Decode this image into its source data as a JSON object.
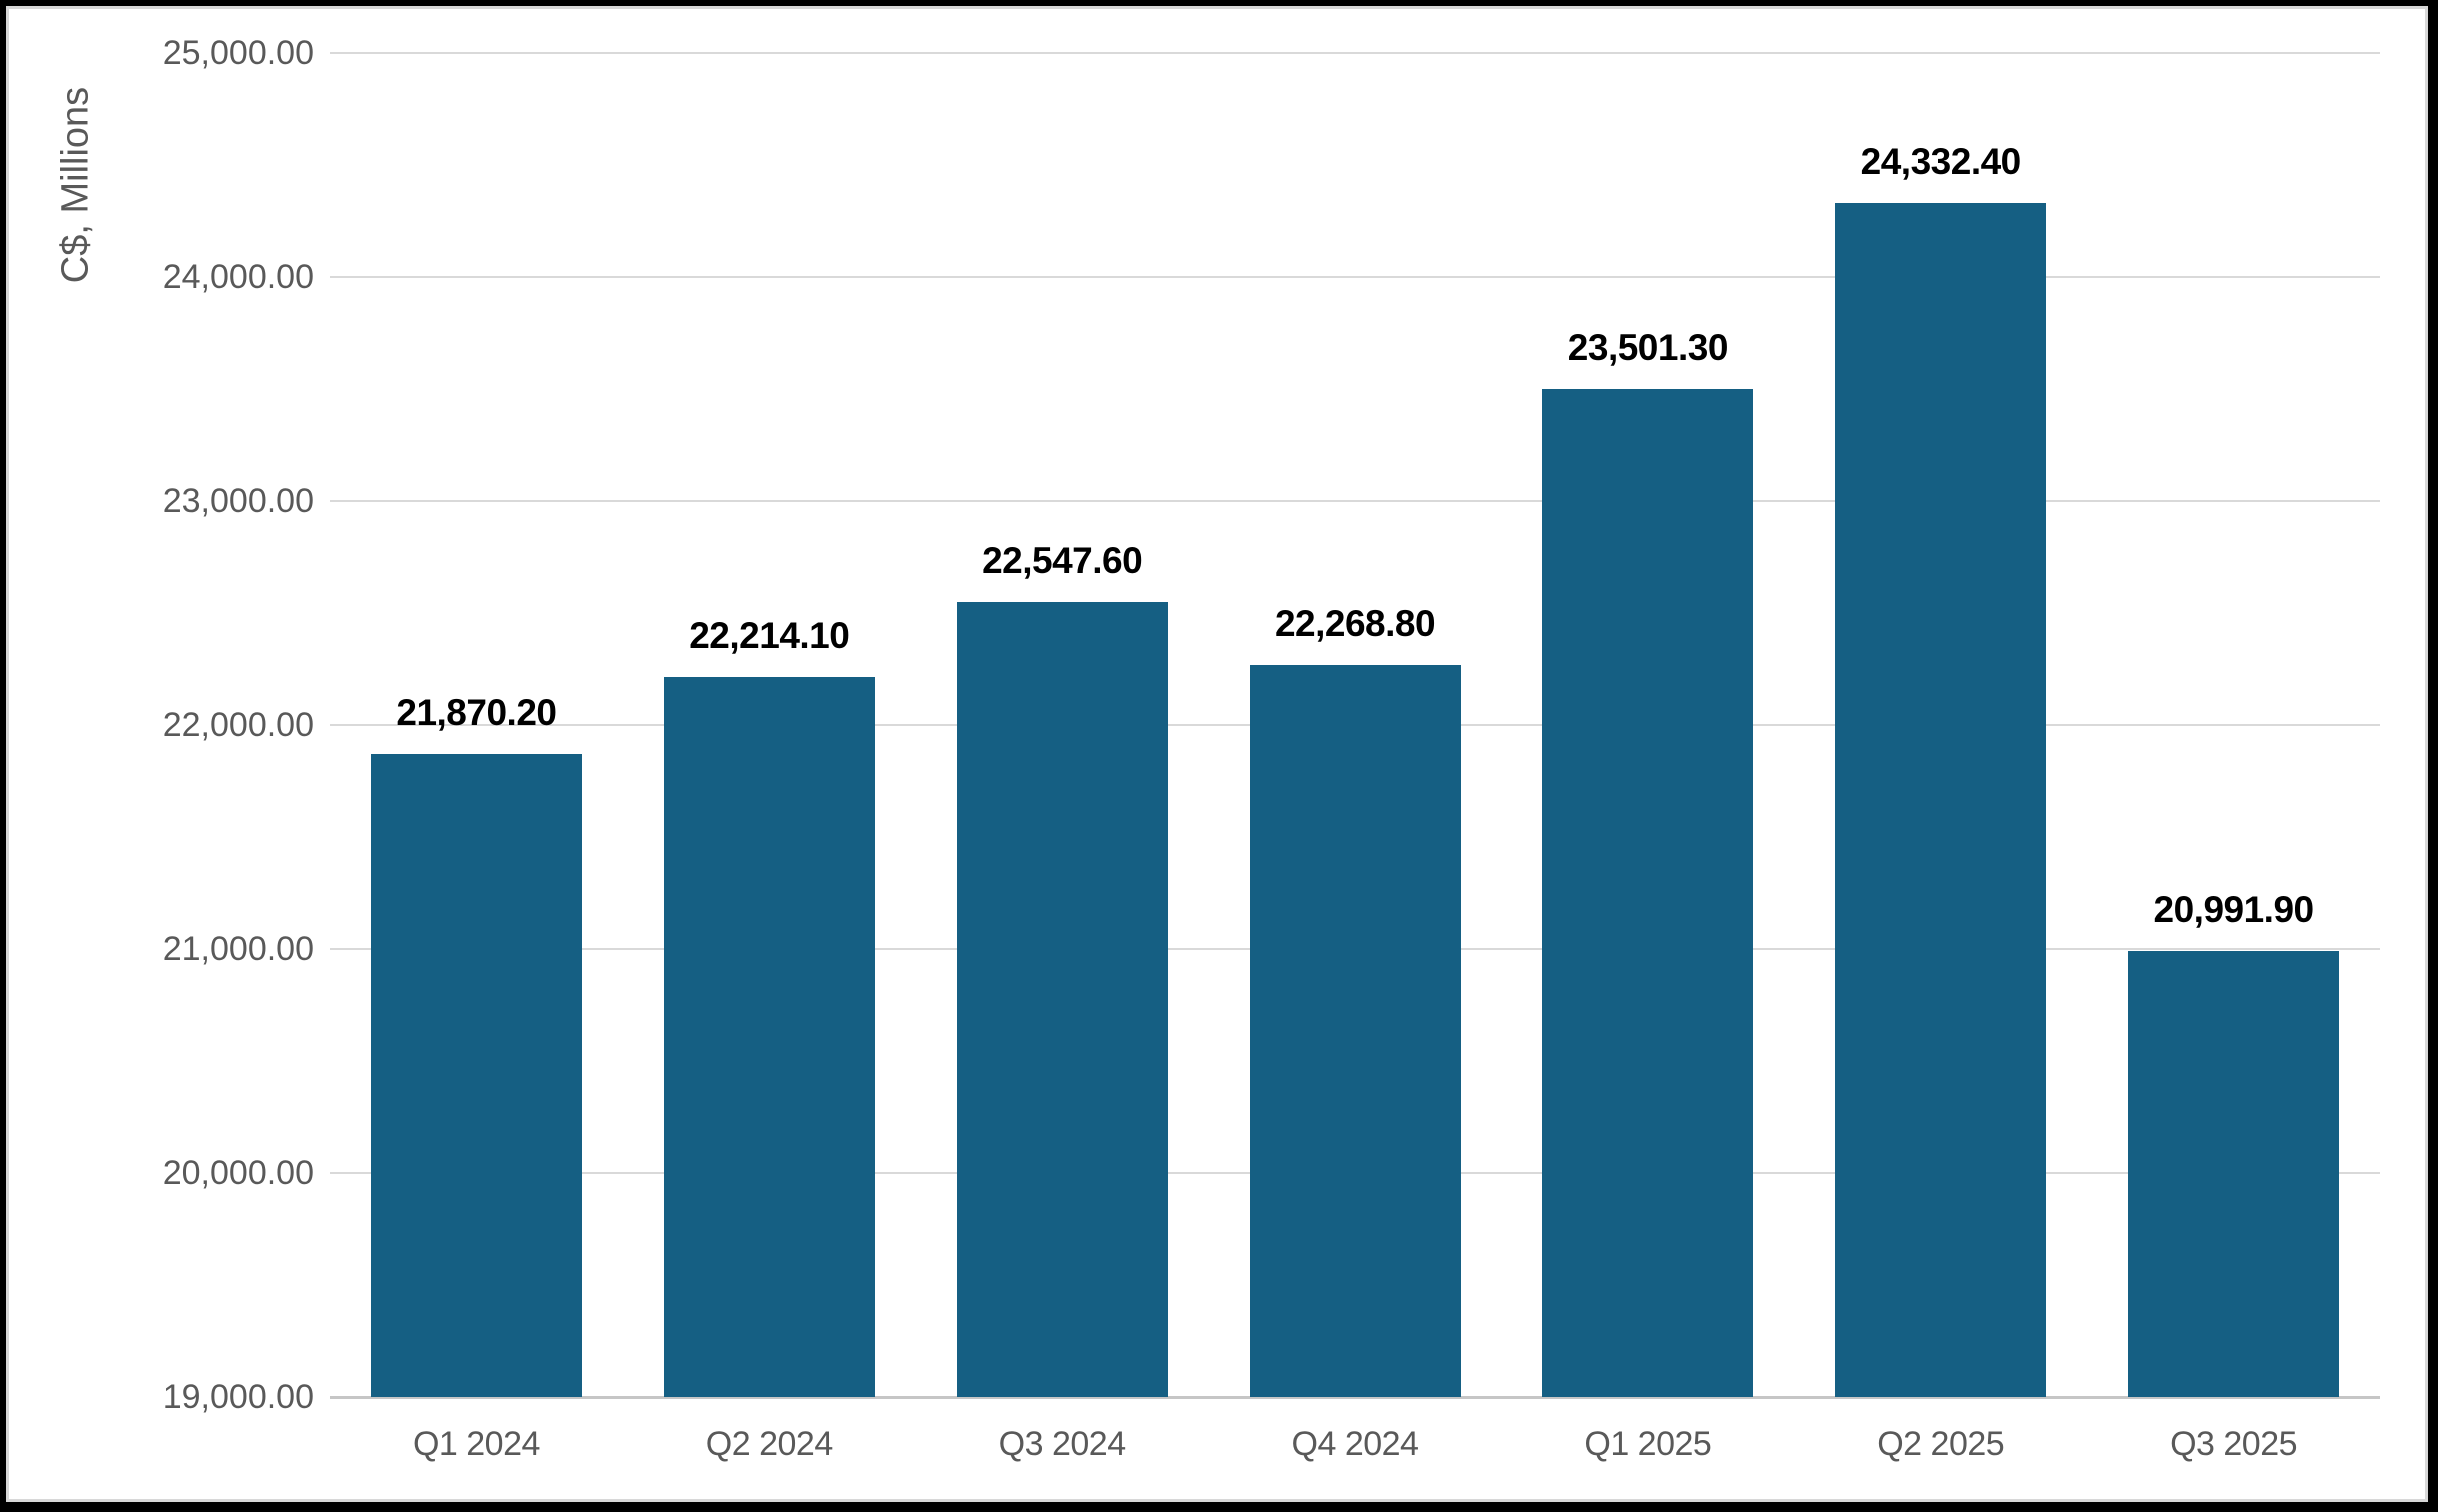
{
  "chart_data": {
    "type": "bar",
    "title": "",
    "xlabel": "",
    "ylabel": "C$, Millions",
    "categories": [
      "Q1 2024",
      "Q2 2024",
      "Q3 2024",
      "Q4 2024",
      "Q1 2025",
      "Q2 2025",
      "Q3 2025"
    ],
    "values": [
      21870.2,
      22214.1,
      22547.6,
      22268.8,
      23501.3,
      24332.4,
      20991.9
    ],
    "value_labels": [
      "21,870.20",
      "22,214.10",
      "22,547.60",
      "22,268.80",
      "23,501.30",
      "24,332.40",
      "20,991.90"
    ],
    "ylim": [
      19000,
      25000
    ],
    "ytick_step": 1000,
    "ytick_labels": [
      "25,000.00",
      "24,000.00",
      "23,000.00",
      "22,000.00",
      "21,000.00",
      "20,000.00",
      "19,000.00"
    ],
    "grid": "horizontal",
    "legend": "none",
    "bar_color": "#155f83",
    "gridline_color": "#d9d9d9",
    "axisline_color": "#c6c6c6",
    "tick_text_color": "#595959",
    "data_label_color": "#000000"
  }
}
